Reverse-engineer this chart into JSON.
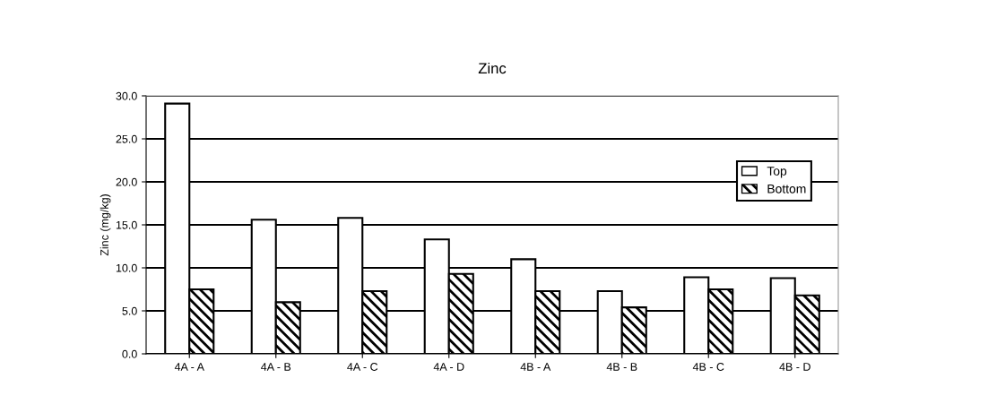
{
  "chart_data": {
    "type": "bar",
    "title": "Zinc",
    "ylabel": "Zinc (mg/kg)",
    "categories": [
      "4A - A",
      "4A - B",
      "4A - C",
      "4A - D",
      "4B - A",
      "4B - B",
      "4B - C",
      "4B - D"
    ],
    "series": [
      {
        "name": "Top",
        "color": "#ffffff",
        "values": [
          29.1,
          15.6,
          15.8,
          13.3,
          11.0,
          7.3,
          8.9,
          8.8
        ]
      },
      {
        "name": "Bottom",
        "color": "#000000",
        "values": [
          7.5,
          6.0,
          7.3,
          9.3,
          7.3,
          5.4,
          7.5,
          6.8
        ]
      }
    ],
    "ylim": [
      0,
      30
    ],
    "yticks": [
      {
        "value": 0,
        "label": "0.0"
      },
      {
        "value": 5,
        "label": "5.0"
      },
      {
        "value": 10,
        "label": "10.0"
      },
      {
        "value": 15,
        "label": "15.0"
      },
      {
        "value": 20,
        "label": "20.0"
      },
      {
        "value": 25,
        "label": "25.0"
      },
      {
        "value": 30,
        "label": "30.0"
      }
    ],
    "grid": "y",
    "legend": "right"
  }
}
